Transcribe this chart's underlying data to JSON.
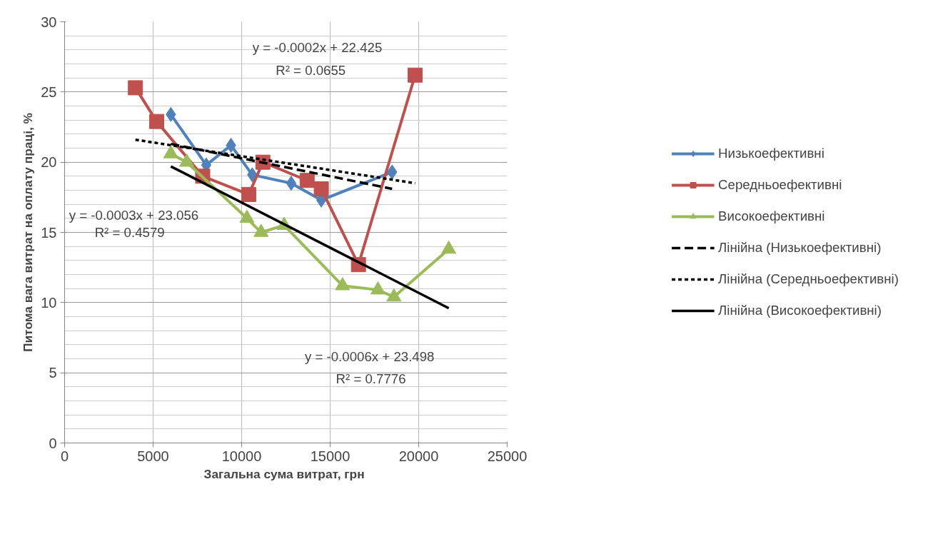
{
  "chart_data": {
    "type": "line",
    "xlabel": "Загальна  сума витрат, грн",
    "ylabel": "Питома вага витрат на оплату праці, %",
    "xlim": [
      0,
      25000
    ],
    "xticks": [
      0,
      5000,
      10000,
      15000,
      20000,
      25000
    ],
    "ylim": [
      0,
      30
    ],
    "yticks": [
      0,
      5,
      10,
      15,
      20,
      25,
      30
    ],
    "grid": true,
    "legend": "right",
    "series": [
      {
        "name": "Низькоефективні",
        "color": "#4f81bd",
        "marker": "diamond",
        "x": [
          6000,
          8000,
          9400,
          10600,
          12800,
          14500,
          18500
        ],
        "values": [
          23.4,
          19.8,
          21.2,
          19.1,
          18.5,
          17.3,
          19.3
        ]
      },
      {
        "name": "Середньоефективні",
        "color": "#c0504d",
        "marker": "square",
        "x": [
          4000,
          5200,
          7800,
          10400,
          11200,
          13700,
          14500,
          16600,
          19800
        ],
        "values": [
          25.3,
          22.9,
          19.0,
          17.7,
          20.0,
          18.7,
          18.1,
          12.7,
          26.2
        ]
      },
      {
        "name": "Високоефективні",
        "color": "#9bbb59",
        "marker": "triangle",
        "x": [
          6000,
          6900,
          10300,
          11100,
          12400,
          15700,
          17700,
          18600,
          21700
        ],
        "values": [
          20.6,
          20.0,
          16.0,
          15.0,
          15.5,
          11.2,
          10.9,
          10.4,
          13.8
        ]
      },
      {
        "name": "Лінійна (Низькоефективні)",
        "color": "#000000",
        "marker": "none",
        "line_style": "dashed",
        "x": [
          6000,
          18500
        ],
        "values": [
          21.3,
          18.1
        ]
      },
      {
        "name": "Лінійна (Середньоефективні)",
        "color": "#000000",
        "marker": "none",
        "line_style": "dotted",
        "x": [
          4000,
          19800
        ],
        "values": [
          21.6,
          18.5
        ]
      },
      {
        "name": "Лінійна (Високоефективні)",
        "color": "#000000",
        "marker": "none",
        "line_style": "solid",
        "x": [
          6000,
          21700
        ],
        "values": [
          19.7,
          9.6
        ]
      }
    ],
    "annotations": [
      "y = -0.0002x + 22.425",
      "R² = 0.0655",
      "y = -0.0003x + 23.056",
      "R² = 0.4579",
      "y = -0.0006x + 23.498",
      "R² = 0.7776"
    ]
  }
}
